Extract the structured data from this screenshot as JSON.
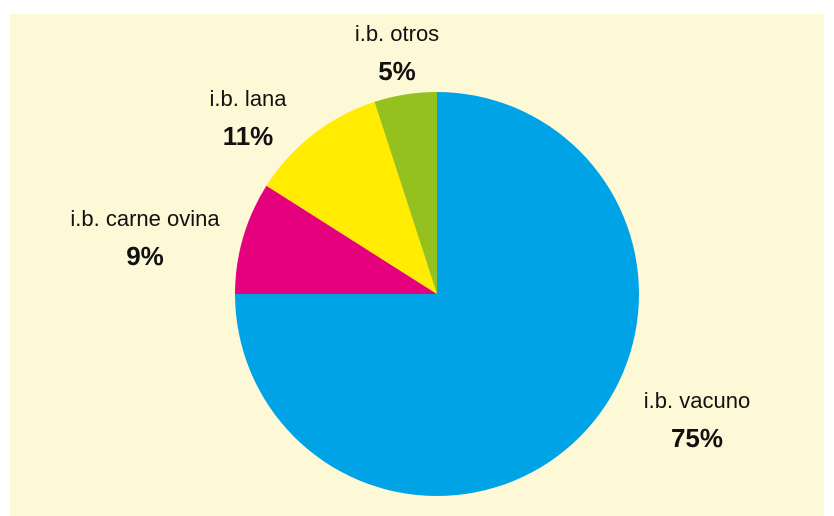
{
  "chart_data": {
    "type": "pie",
    "categories": [
      "i.b. vacuno",
      "i.b. carne ovina",
      "i.b. lana",
      "i.b. otros"
    ],
    "values": [
      75,
      9,
      11,
      5
    ],
    "value_labels": [
      "75%",
      "9%",
      "11%",
      "5%"
    ],
    "colors": [
      "#00a3e6",
      "#e5007d",
      "#ffec00",
      "#95c11f"
    ],
    "start_angle": 90,
    "direction": "clockwise"
  }
}
